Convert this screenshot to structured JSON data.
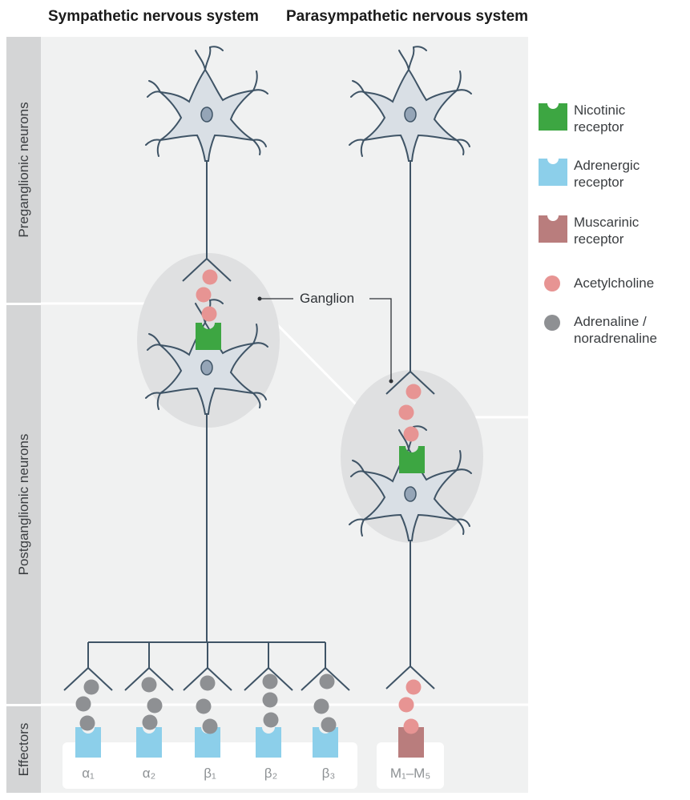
{
  "titles": {
    "sympathetic": "Sympathetic nervous system",
    "parasympathetic": "Parasympathetic nervous system"
  },
  "rows": {
    "preganglionic": "Preganglionic neurons",
    "postganglionic": "Postganglionic neurons",
    "effectors": "Effectors"
  },
  "ganglion_label": "Ganglion",
  "legend": [
    {
      "line1": "Nicotinic",
      "line2": "receptor",
      "icon": "nicotinic-receptor-icon",
      "color": "#3da642"
    },
    {
      "line1": "Adrenergic",
      "line2": "receptor",
      "icon": "adrenergic-receptor-icon",
      "color": "#8ccfea"
    },
    {
      "line1": "Muscarinic",
      "line2": "receptor",
      "icon": "muscarinic-receptor-icon",
      "color": "#b97d7d"
    },
    {
      "line1": "Acetylcholine",
      "line2": "",
      "icon": "acetylcholine-dot-icon",
      "color": "#e79493"
    },
    {
      "line1": "Adrenaline /",
      "line2": "noradrenaline",
      "icon": "adrenaline-dot-icon",
      "color": "#8e9093"
    }
  ],
  "receptor_subtypes": {
    "sympathetic": [
      "α₁",
      "α₂",
      "β₁",
      "β₂",
      "β₃"
    ],
    "parasympathetic": "M₁–M₅"
  },
  "colors": {
    "neuron_fill": "#d9dfe5",
    "neuron_stroke": "#3f5466",
    "nucleus": "#95a5b7",
    "background": "#f0f1f1",
    "band": "#d4d5d6",
    "ganglion": "#dfe0e1"
  }
}
